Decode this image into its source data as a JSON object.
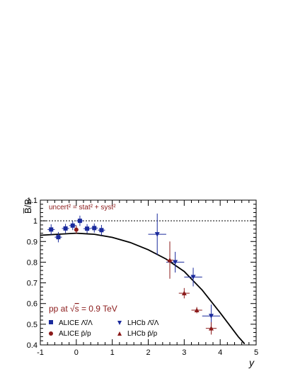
{
  "chart_data": {
    "type": "scatter",
    "title": "",
    "xlabel": "y",
    "ylabel": "B̅/B",
    "xlim": [
      -1,
      5
    ],
    "ylim": [
      0.4,
      1.1
    ],
    "xticks": [
      "-1",
      "0",
      "1",
      "2",
      "3",
      "4",
      "5"
    ],
    "yticks": [
      "0.4",
      "0.5",
      "0.6",
      "0.7",
      "0.8",
      "0.9",
      "1",
      "1.1"
    ],
    "reference_line": 1.0,
    "grid": false,
    "legend_placement": "bottom-left",
    "annotations": {
      "uncertainty_note": "uncert² = stat² + syst²",
      "system_prefix": "pp at √",
      "system_s": "s",
      "system_suffix": " = 0.9 TeV"
    },
    "legend": {
      "alice_lambda": "ALICE Λ̄/Λ",
      "alice_p": "ALICE p̄/p",
      "lhcb_lambda": "LHCb Λ̄/Λ",
      "lhcb_p": "LHCb p̄/p"
    },
    "colors": {
      "blue": "#1a2a9c",
      "red": "#8b1a1a",
      "curve": "#000000"
    },
    "series": [
      {
        "name": "ALICE Λ̄/Λ",
        "marker": "square",
        "color": "#1a2a9c",
        "points": [
          {
            "x": -0.7,
            "y": 0.958,
            "xerr": 0.1,
            "yerr": 0.025
          },
          {
            "x": -0.5,
            "y": 0.921,
            "xerr": 0.1,
            "yerr": 0.025
          },
          {
            "x": -0.3,
            "y": 0.963,
            "xerr": 0.1,
            "yerr": 0.022
          },
          {
            "x": -0.1,
            "y": 0.977,
            "xerr": 0.1,
            "yerr": 0.022
          },
          {
            "x": 0.1,
            "y": 1.0,
            "xerr": 0.1,
            "yerr": 0.025
          },
          {
            "x": 0.3,
            "y": 0.962,
            "xerr": 0.1,
            "yerr": 0.022
          },
          {
            "x": 0.5,
            "y": 0.965,
            "xerr": 0.1,
            "yerr": 0.022
          },
          {
            "x": 0.7,
            "y": 0.955,
            "xerr": 0.1,
            "yerr": 0.025
          }
        ]
      },
      {
        "name": "ALICE p̄/p",
        "marker": "circle",
        "color": "#8b1a1a",
        "points": [
          {
            "x": 0.0,
            "y": 0.957,
            "xerr": 0.0,
            "yerr": 0.02
          }
        ]
      },
      {
        "name": "LHCb Λ̄/Λ",
        "marker": "triangle-down",
        "color": "#1a2a9c",
        "points": [
          {
            "x": 2.25,
            "y": 0.935,
            "xerr": 0.25,
            "yerr": 0.1
          },
          {
            "x": 2.75,
            "y": 0.8,
            "xerr": 0.25,
            "yerr": 0.05
          },
          {
            "x": 3.25,
            "y": 0.728,
            "xerr": 0.25,
            "yerr": 0.045
          },
          {
            "x": 3.75,
            "y": 0.54,
            "xerr": 0.25,
            "yerr": 0.055
          }
        ]
      },
      {
        "name": "LHCb p̄/p",
        "marker": "triangle-up",
        "color": "#8b1a1a",
        "points": [
          {
            "x": 2.6,
            "y": 0.81,
            "xerr": 0.1,
            "yerr": 0.09
          },
          {
            "x": 3.0,
            "y": 0.65,
            "xerr": 0.15,
            "yerr": 0.025
          },
          {
            "x": 3.35,
            "y": 0.568,
            "xerr": 0.15,
            "yerr": 0.015
          },
          {
            "x": 3.75,
            "y": 0.48,
            "xerr": 0.15,
            "yerr": 0.03
          }
        ]
      }
    ],
    "curve": {
      "name": "",
      "points": [
        [
          -1,
          0.93
        ],
        [
          0,
          0.94
        ],
        [
          0.5,
          0.935
        ],
        [
          1,
          0.92
        ],
        [
          1.5,
          0.895
        ],
        [
          2,
          0.86
        ],
        [
          2.5,
          0.815
        ],
        [
          3,
          0.755
        ],
        [
          3.5,
          0.665
        ],
        [
          4,
          0.555
        ],
        [
          4.5,
          0.44
        ],
        [
          4.68,
          0.405
        ]
      ]
    }
  }
}
